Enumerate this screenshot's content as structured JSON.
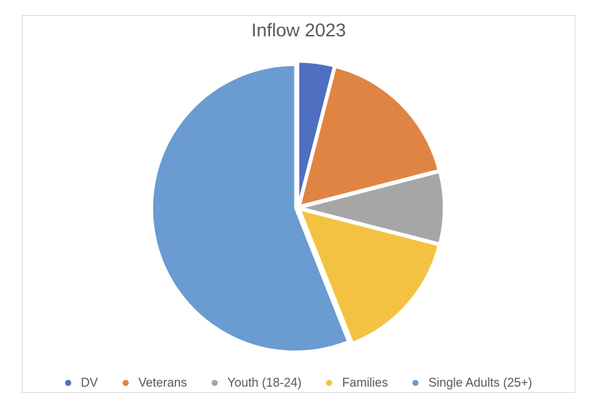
{
  "chart_data": {
    "type": "pie",
    "title": "Inflow 2023",
    "categories": [
      "DV",
      "Veterans",
      "Youth (18-24)",
      "Families",
      "Single Adults (25+)"
    ],
    "values": [
      4,
      17,
      8,
      15,
      56
    ],
    "unit": "percent (estimated share)",
    "colors": [
      "#4472c4",
      "#ed7d31",
      "#a5a5a5",
      "#ffc000",
      "#5b9bd5"
    ],
    "display_colors": [
      "#4f6fc1",
      "#e08443",
      "#a6a6a6",
      "#f4c242",
      "#6a9bd1"
    ],
    "legend": "bottom",
    "start_angle_deg": 0,
    "direction": "clockwise",
    "exploded": true
  }
}
